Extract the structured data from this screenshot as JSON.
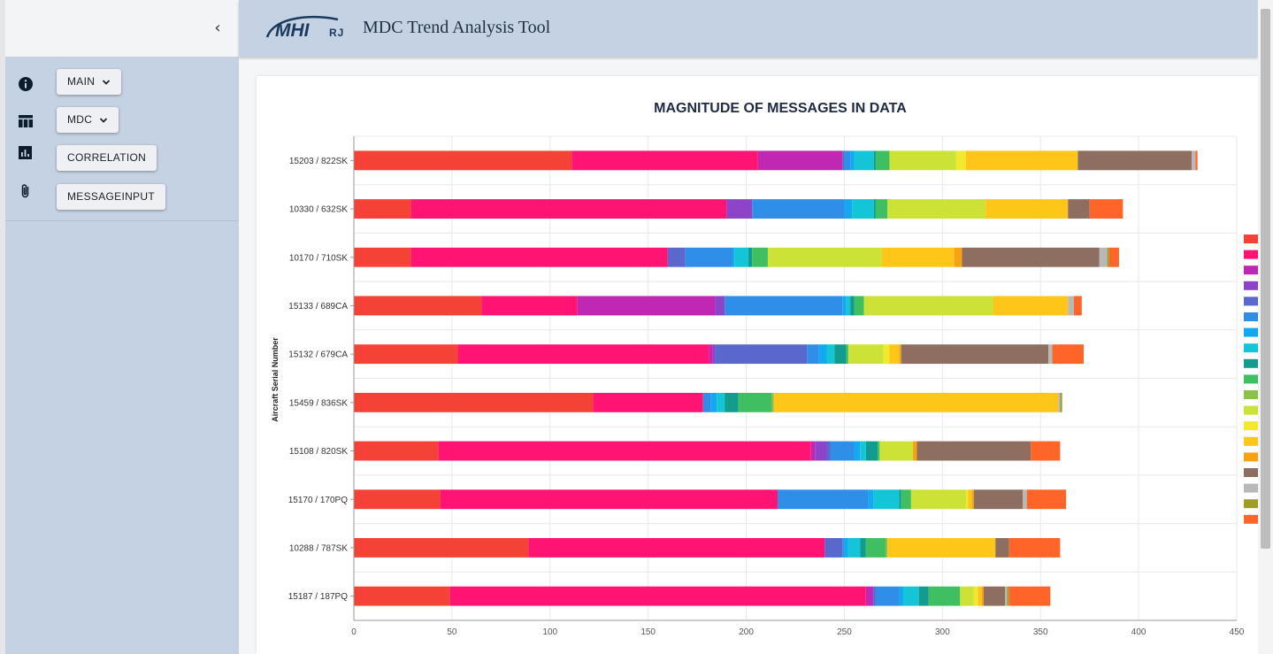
{
  "app": {
    "title": "MDC Trend Analysis Tool",
    "logo_text": "MHIRJ"
  },
  "sidebar": {
    "collapse_icon": "chevron-left-icon",
    "items": [
      {
        "label": "MAIN",
        "icon": "info-icon",
        "has_dropdown": true
      },
      {
        "label": "MDC",
        "icon": "table-icon",
        "has_dropdown": true
      },
      {
        "label": "CORRELATION",
        "icon": "bar-chart-icon",
        "has_dropdown": false
      },
      {
        "label": "MESSAGEINPUT",
        "icon": "paperclip-icon",
        "has_dropdown": false
      }
    ]
  },
  "colors": {
    "sidebar_bg": "#c5d2e3",
    "header_bg": "#c5d2e3",
    "title_color": "#1f2f44"
  },
  "chart_data": {
    "type": "bar",
    "orientation": "horizontal",
    "stacked": true,
    "title": "MAGNITUDE OF MESSAGES IN DATA",
    "xlabel": "",
    "ylabel": "Aircraft Serial Number",
    "xlim": [
      0,
      450
    ],
    "xticks": [
      0,
      50,
      100,
      150,
      200,
      250,
      300,
      350,
      400,
      450
    ],
    "grid": true,
    "legend_position": "right",
    "categories": [
      "15203 / 822SK",
      "10330 / 632SK",
      "10170 / 710SK",
      "15133 / 689CA",
      "15132 / 679CA",
      "15459 / 836SK",
      "15108 / 820SK",
      "15170 / 170PQ",
      "10288 / 787SK",
      "15187 / 187PQ"
    ],
    "series": [
      {
        "color": "#f44336",
        "values": [
          111,
          29,
          29,
          65,
          53,
          122,
          43,
          44,
          89,
          49
        ]
      },
      {
        "color": "#ff1473",
        "values": [
          95,
          161,
          131,
          49,
          128,
          56,
          190,
          172,
          151,
          212
        ]
      },
      {
        "color": "#c027b3",
        "values": [
          43,
          0,
          0,
          70,
          2,
          0,
          2,
          0,
          0,
          3
        ]
      },
      {
        "color": "#8e44c8",
        "values": [
          0,
          13,
          0,
          5,
          1,
          0,
          6,
          0,
          0,
          1
        ]
      },
      {
        "color": "#5a67cc",
        "values": [
          1,
          0,
          9,
          0,
          47,
          0,
          2,
          0,
          9,
          1
        ]
      },
      {
        "color": "#2f8fe8",
        "values": [
          3,
          47,
          24,
          60,
          6,
          4,
          12,
          46,
          1,
          12
        ]
      },
      {
        "color": "#13a9f0",
        "values": [
          2,
          4,
          1,
          2,
          4,
          3,
          3,
          3,
          2,
          2
        ]
      },
      {
        "color": "#13c5d6",
        "values": [
          10,
          11,
          7,
          2,
          4,
          4,
          3,
          13,
          6,
          8
        ]
      },
      {
        "color": "#119c8d",
        "values": [
          1,
          1,
          2,
          2,
          6,
          7,
          6,
          1,
          3,
          5
        ]
      },
      {
        "color": "#40bf62",
        "values": [
          7,
          6,
          8,
          5,
          1,
          17,
          1,
          5,
          10,
          16
        ]
      },
      {
        "color": "#8bc34a",
        "values": [
          0,
          0,
          0,
          0,
          0,
          1,
          0,
          0,
          1,
          0
        ]
      },
      {
        "color": "#cde236",
        "values": [
          34,
          50,
          58,
          66,
          18,
          0,
          17,
          28,
          0,
          7
        ]
      },
      {
        "color": "#f2e92c",
        "values": [
          5,
          0,
          0,
          0,
          3,
          0,
          0,
          1,
          0,
          2
        ]
      },
      {
        "color": "#ffc61a",
        "values": [
          57,
          42,
          37,
          38,
          5,
          145,
          0,
          2,
          55,
          2
        ]
      },
      {
        "color": "#f7a212",
        "values": [
          0,
          0,
          4,
          0,
          1,
          0,
          2,
          1,
          0,
          1
        ]
      },
      {
        "color": "#8e6e60",
        "values": [
          58,
          11,
          70,
          0,
          75,
          0,
          58,
          25,
          7,
          11
        ]
      },
      {
        "color": "#b8b8b8",
        "values": [
          2,
          0,
          4,
          3,
          2,
          1,
          0,
          2,
          0,
          1
        ]
      },
      {
        "color": "#9e9d24",
        "values": [
          0,
          0,
          1,
          0,
          0,
          1,
          0,
          0,
          0,
          1
        ]
      },
      {
        "color": "#ff6428",
        "values": [
          1,
          17,
          5,
          4,
          16,
          0,
          15,
          20,
          26,
          21
        ]
      }
    ]
  }
}
